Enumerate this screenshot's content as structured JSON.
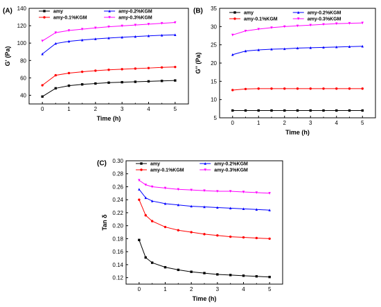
{
  "colors": {
    "amy": "#000000",
    "kgm01": "#ff0000",
    "kgm02": "#0000ff",
    "kgm03": "#ff00ff"
  },
  "chart_data": [
    {
      "id": "A",
      "panel_label": "(A)",
      "type": "line",
      "xlabel": "Time (h)",
      "ylabel": "G' (Pa)",
      "xlim": [
        -0.5,
        5.5
      ],
      "ylim": [
        30,
        140
      ],
      "xticks": [
        0,
        1,
        2,
        3,
        4,
        5
      ],
      "yticks": [
        40,
        60,
        80,
        100,
        120,
        140
      ],
      "legend": [
        "amy",
        "amy-0.2%KGM",
        "amy-0.1%KGM",
        "amy-0.3%KGM"
      ],
      "x": [
        0,
        0.5,
        1,
        1.5,
        2,
        2.5,
        3,
        3.5,
        4,
        4.5,
        5
      ],
      "series": [
        {
          "name": "amy",
          "color": "#000000",
          "marker": "square",
          "values": [
            38.5,
            48,
            51,
            52.5,
            53.5,
            54.5,
            55,
            55.5,
            56,
            56.5,
            57
          ]
        },
        {
          "name": "amy-0.1%KGM",
          "color": "#ff0000",
          "marker": "circle",
          "values": [
            51.5,
            63,
            65.5,
            67,
            68.3,
            69.3,
            70,
            70.7,
            71.3,
            72,
            72.5
          ]
        },
        {
          "name": "amy-0.2%KGM",
          "color": "#0000ff",
          "marker": "triangle",
          "values": [
            87.5,
            99.5,
            102,
            103.5,
            104.8,
            105.8,
            106.7,
            107.5,
            108.3,
            109,
            109.5
          ]
        },
        {
          "name": "amy-0.3%KGM",
          "color": "#ff00ff",
          "marker": "triangle-down",
          "values": [
            102.5,
            112,
            114.5,
            116,
            117.5,
            118.8,
            119.8,
            120.8,
            121.8,
            122.8,
            123.7
          ]
        }
      ]
    },
    {
      "id": "B",
      "panel_label": "(B)",
      "type": "line",
      "xlabel": "Time (h)",
      "ylabel": "G'' (Pa)",
      "xlim": [
        -0.5,
        5.5
      ],
      "ylim": [
        5,
        35
      ],
      "xticks": [
        0,
        1,
        2,
        3,
        4,
        5
      ],
      "yticks": [
        5,
        10,
        15,
        20,
        25,
        30,
        35
      ],
      "legend": [
        "amy",
        "amy-0.2%KGM",
        "amy-0.1%KGM",
        "amy-0.3%KGM"
      ],
      "x": [
        0,
        0.5,
        1,
        1.5,
        2,
        2.5,
        3,
        3.5,
        4,
        4.5,
        5
      ],
      "series": [
        {
          "name": "amy",
          "color": "#000000",
          "marker": "square",
          "values": [
            7,
            7,
            7,
            7,
            7,
            7,
            7,
            7,
            7,
            7,
            7
          ]
        },
        {
          "name": "amy-0.1%KGM",
          "color": "#ff0000",
          "marker": "circle",
          "values": [
            12.6,
            12.9,
            13,
            13,
            13,
            13,
            13,
            13,
            13,
            13,
            13
          ]
        },
        {
          "name": "amy-0.2%KGM",
          "color": "#0000ff",
          "marker": "triangle",
          "values": [
            22.3,
            23.3,
            23.6,
            23.8,
            23.9,
            24.1,
            24.2,
            24.3,
            24.4,
            24.5,
            24.6
          ]
        },
        {
          "name": "amy-0.3%KGM",
          "color": "#ff00ff",
          "marker": "triangle-down",
          "values": [
            27.7,
            28.8,
            29.3,
            29.7,
            30,
            30.2,
            30.4,
            30.6,
            30.8,
            30.9,
            31
          ]
        }
      ]
    },
    {
      "id": "C",
      "panel_label": "(C)",
      "type": "line",
      "xlabel": "Time (h)",
      "ylabel": "Tan δ",
      "xlim": [
        -0.5,
        5.5
      ],
      "ylim": [
        0.11,
        0.3
      ],
      "xticks": [
        0,
        1,
        2,
        3,
        4,
        5
      ],
      "yticks": [
        0.12,
        0.14,
        0.16,
        0.18,
        0.2,
        0.22,
        0.24,
        0.26,
        0.28,
        0.3
      ],
      "ytick_labels": [
        "0.12",
        "0.14",
        "0.16",
        "0.18",
        "0.20",
        "0.22",
        "0.24",
        "0.26",
        "0.28",
        "0.30"
      ],
      "legend": [
        "amy",
        "amy-0.2%KGM",
        "amy-0.1%KGM",
        "amy-0.3%KGM"
      ],
      "x": [
        0,
        0.25,
        0.5,
        1,
        1.5,
        2,
        2.5,
        3,
        3.5,
        4,
        4.5,
        5
      ],
      "series": [
        {
          "name": "amy",
          "color": "#000000",
          "marker": "square",
          "values": [
            0.178,
            0.151,
            0.143,
            0.136,
            0.132,
            0.129,
            0.127,
            0.125,
            0.124,
            0.123,
            0.122,
            0.121
          ]
        },
        {
          "name": "amy-0.1%KGM",
          "color": "#ff0000",
          "marker": "circle",
          "values": [
            0.24,
            0.216,
            0.207,
            0.198,
            0.193,
            0.19,
            0.187,
            0.185,
            0.183,
            0.182,
            0.181,
            0.18
          ]
        },
        {
          "name": "amy-0.2%KGM",
          "color": "#0000ff",
          "marker": "triangle",
          "values": [
            0.256,
            0.243,
            0.238,
            0.234,
            0.232,
            0.23,
            0.229,
            0.228,
            0.227,
            0.226,
            0.225,
            0.224
          ]
        },
        {
          "name": "amy-0.3%KGM",
          "color": "#ff00ff",
          "marker": "triangle-down",
          "values": [
            0.27,
            0.263,
            0.26,
            0.258,
            0.256,
            0.255,
            0.254,
            0.253,
            0.253,
            0.252,
            0.251,
            0.25
          ]
        }
      ]
    }
  ]
}
